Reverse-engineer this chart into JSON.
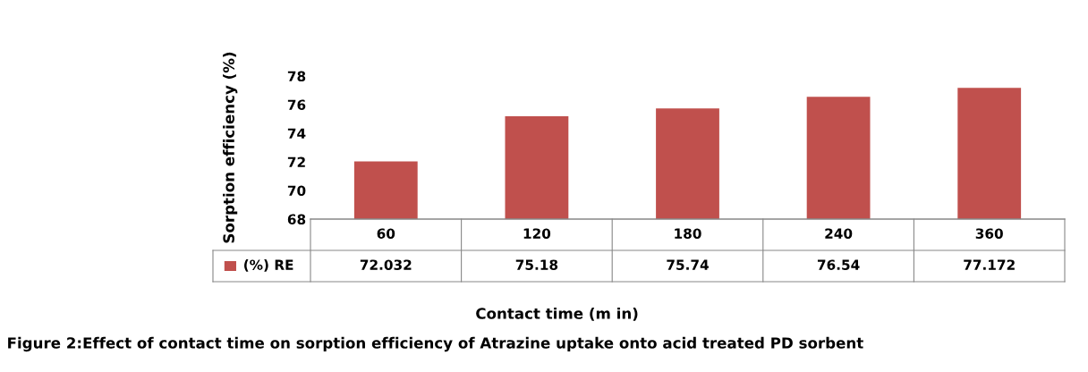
{
  "chart_data": {
    "type": "bar",
    "categories": [
      "60",
      "120",
      "180",
      "240",
      "360"
    ],
    "series": [
      {
        "name": "(%) RE",
        "color": "#c0504d",
        "values": [
          72.032,
          75.18,
          75.74,
          76.54,
          77.172
        ]
      }
    ],
    "ylim": [
      68,
      78
    ],
    "yticks": [
      68,
      70,
      72,
      74,
      76,
      78
    ],
    "ylabel": "Sorption efficiency (%)",
    "xlabel": "Contact time (m in)",
    "annotations": [
      "Figure 2:Effect of contact time on sorption efficiency of Atrazine uptake onto acid treated PD sorbent"
    ],
    "data_labels": true,
    "grid": false,
    "legend": "bottom left"
  }
}
